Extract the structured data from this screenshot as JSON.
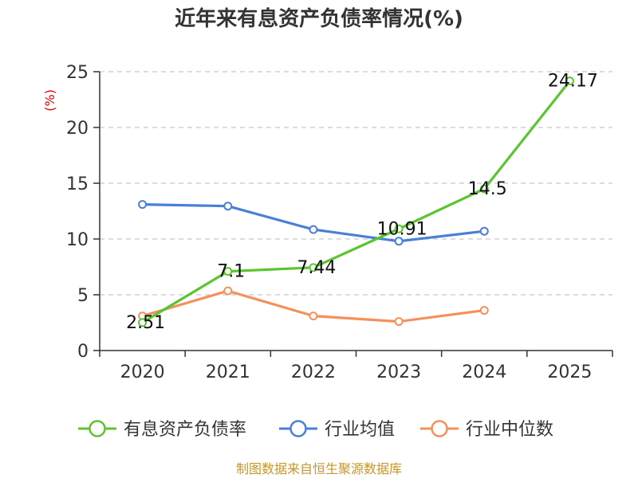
{
  "chart_data": {
    "type": "line",
    "title": "近年来有息资产负债率情况(%)",
    "ylabel": "(%)",
    "xlabel": "",
    "categories": [
      "2020",
      "2021",
      "2022",
      "2023",
      "2024",
      "2025"
    ],
    "ylim": [
      0,
      25
    ],
    "yticks": [
      0,
      5,
      10,
      15,
      20,
      25
    ],
    "grid": true,
    "legend_position": "bottom",
    "series": [
      {
        "name": "有息资产负债率",
        "color": "#5bc52f",
        "show_labels": true,
        "values": [
          2.51,
          7.1,
          7.44,
          10.91,
          14.5,
          24.17
        ],
        "labels": [
          "2.51",
          "7.1",
          "7.44",
          "10.91",
          "14.5",
          "24.17"
        ]
      },
      {
        "name": "行业均值",
        "color": "#4a7fd9",
        "show_labels": false,
        "values": [
          13.1,
          12.95,
          10.85,
          9.8,
          10.7,
          null
        ]
      },
      {
        "name": "行业中位数",
        "color": "#f5905a",
        "show_labels": false,
        "values": [
          3.1,
          5.35,
          3.1,
          2.6,
          3.6,
          null
        ]
      }
    ],
    "source": "制图数据来自恒生聚源数据库"
  }
}
